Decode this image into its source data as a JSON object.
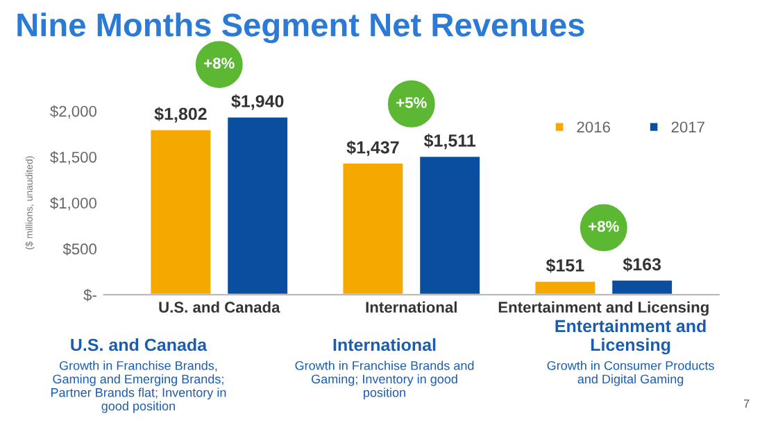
{
  "chart_data": {
    "type": "bar",
    "title": "Nine Months Segment Net Revenues",
    "ylabel": "($ millions, unaudited)",
    "categories": [
      "U.S. and Canada",
      "International",
      "Entertainment and Licensing"
    ],
    "series": [
      {
        "name": "2016",
        "color": "#f5a800",
        "values": [
          1802,
          1437,
          151
        ],
        "value_labels": [
          "$1,802",
          "$1,437",
          "$151"
        ]
      },
      {
        "name": "2017",
        "color": "#0a4ea0",
        "values": [
          1940,
          1511,
          163
        ],
        "value_labels": [
          "$1,940",
          "$1,511",
          "$163"
        ]
      }
    ],
    "ylim": [
      0,
      2000
    ],
    "yticks": [
      {
        "value": 0,
        "label": "$-"
      },
      {
        "value": 500,
        "label": "$500"
      },
      {
        "value": 1000,
        "label": "$1,000"
      },
      {
        "value": 1500,
        "label": "$1,500"
      },
      {
        "value": 2000,
        "label": "$2,000"
      }
    ],
    "legend": "top right",
    "grid": false,
    "annotations": [
      "+8%",
      "+5%",
      "+8%",
      "U.S. and Canada",
      "Growth in Franchise Brands, Gaming and Emerging Brands; Partner Brands flat; Inventory in good position",
      "International",
      "Growth in Franchise Brands and Gaming; Inventory in good position",
      "Entertainment and Licensing",
      "Growth in Consumer Products and Digital Gaming",
      "7"
    ]
  }
}
